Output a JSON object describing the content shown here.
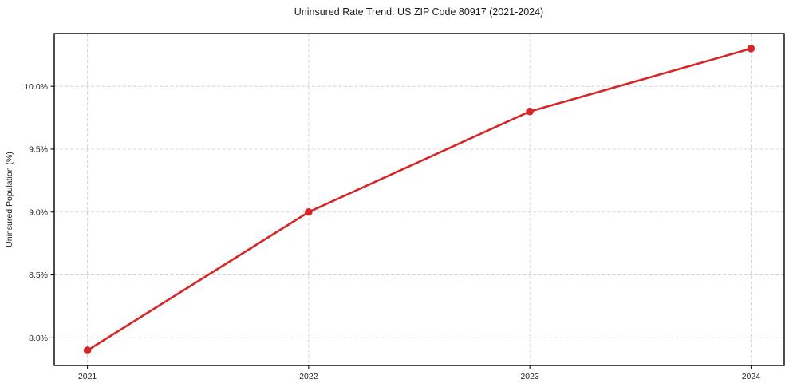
{
  "chart_data": {
    "type": "line",
    "title": "Uninsured Rate Trend: US ZIP Code 80917 (2021-2024)",
    "xlabel": "",
    "ylabel": "Uninsured Population (%)",
    "x": [
      2021,
      2022,
      2023,
      2024
    ],
    "values": [
      7.9,
      9.0,
      9.8,
      10.3
    ],
    "x_tick_labels": [
      "2021",
      "2022",
      "2023",
      "2024"
    ],
    "y_tick_values": [
      8.0,
      8.5,
      9.0,
      9.5,
      10.0
    ],
    "y_tick_labels": [
      "8.0%",
      "8.5%",
      "9.0%",
      "9.5%",
      "10.0%"
    ],
    "xlim": [
      2020.85,
      2024.15
    ],
    "ylim": [
      7.78,
      10.42
    ],
    "grid": true,
    "grid_style": "dashed",
    "legend": "none",
    "line_color": "#d62728",
    "marker_color": "#d62728",
    "grid_color": "#cccccc",
    "spine_color": "#000000",
    "background_color": "#ffffff"
  }
}
